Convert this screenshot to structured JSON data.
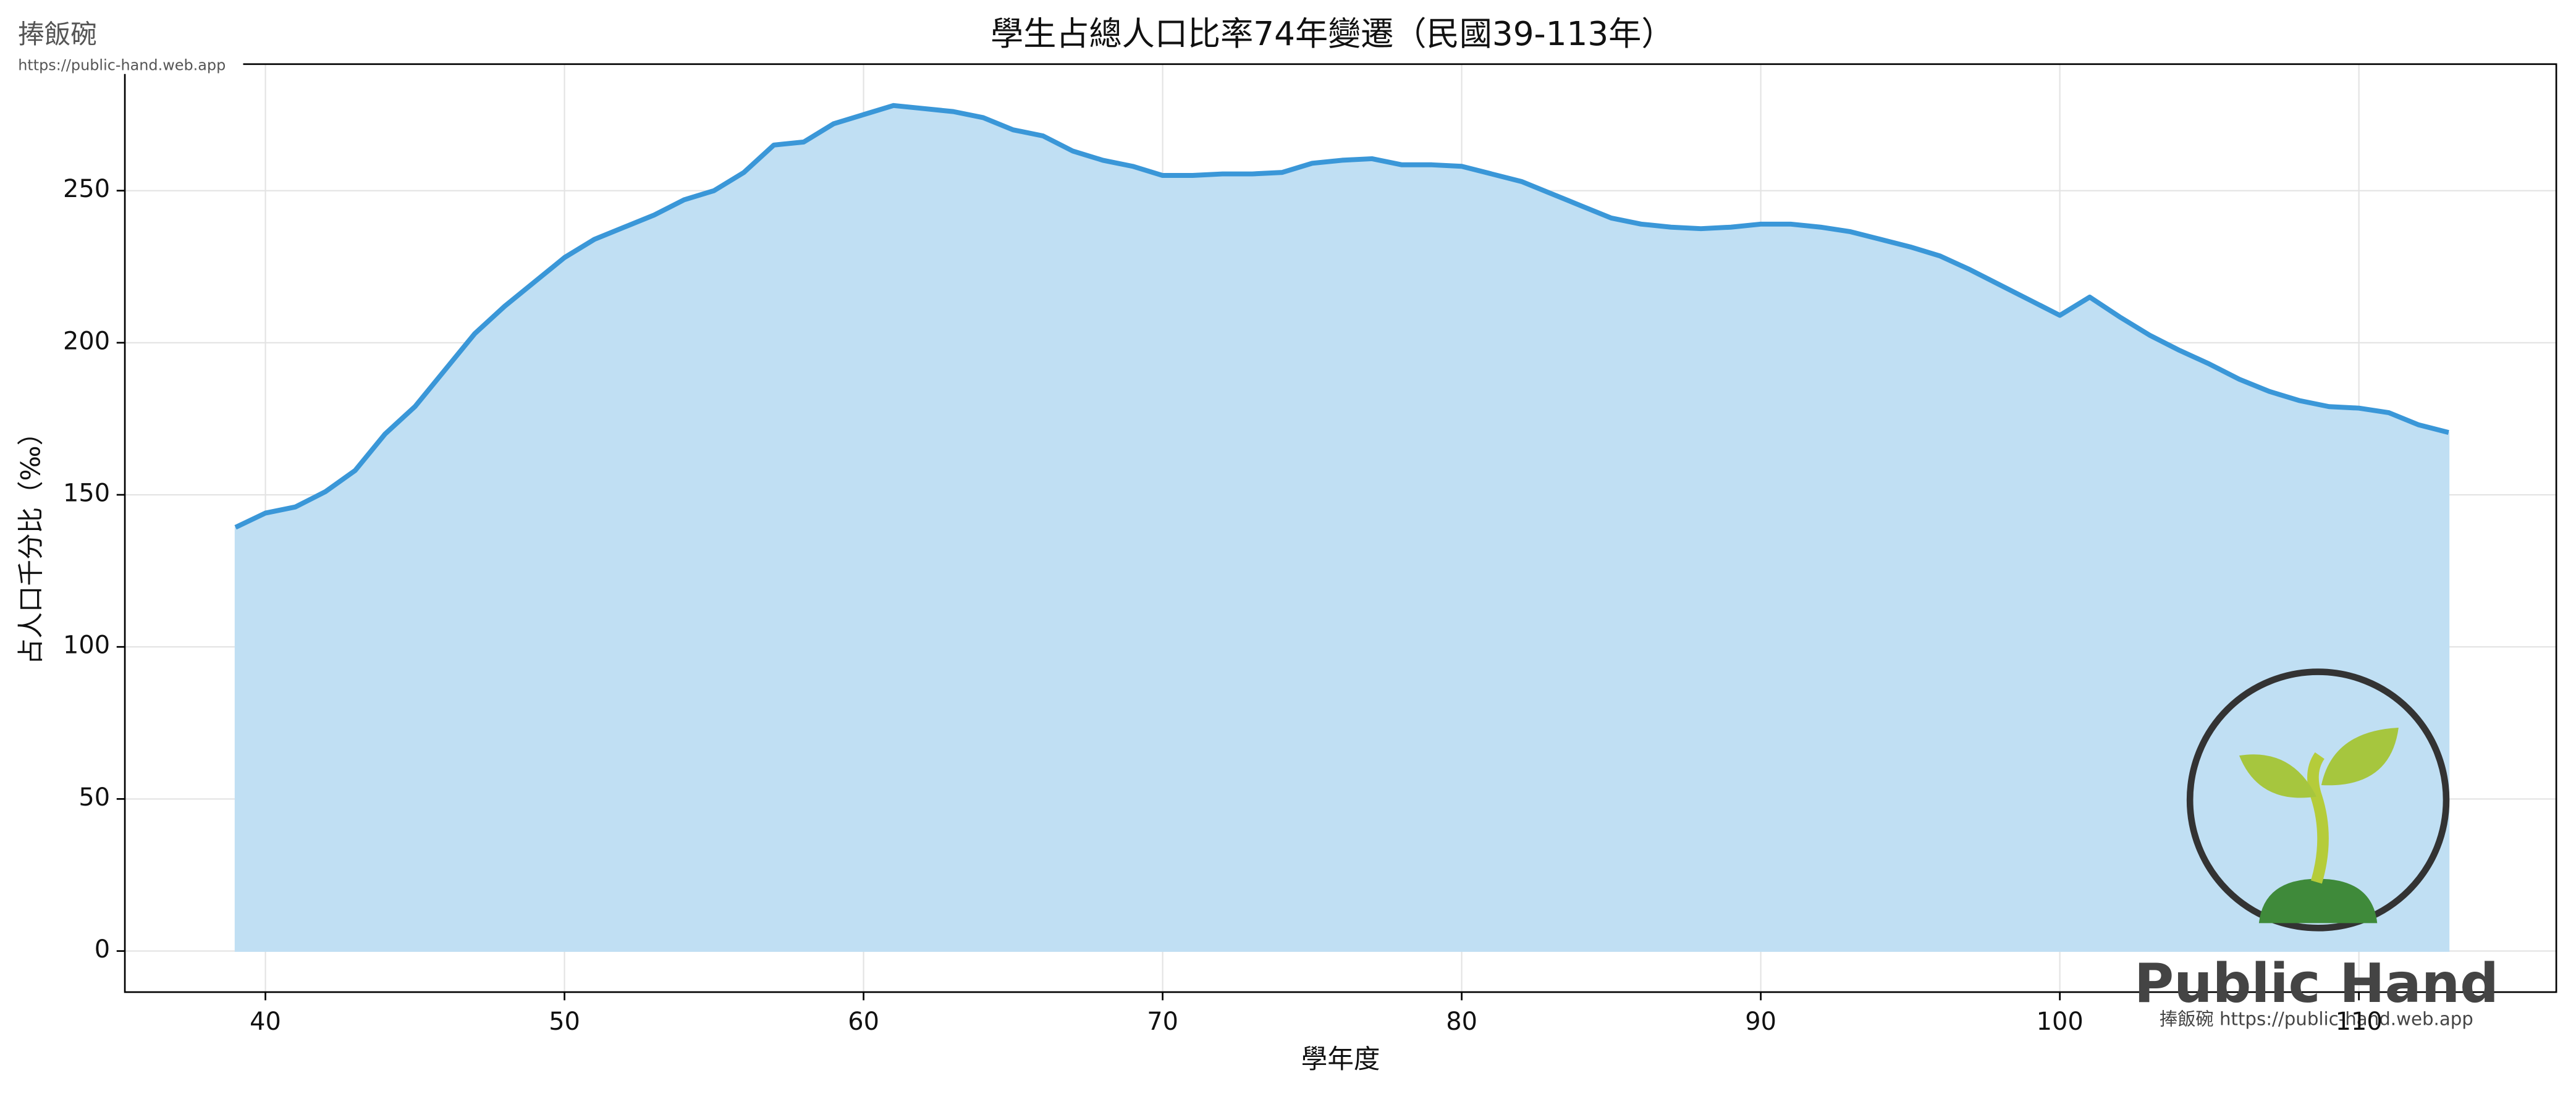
{
  "chart_data": {
    "type": "area",
    "title": "學生占總人口比率74年變遷（民國39-113年）",
    "xlabel": "學年度",
    "ylabel": "占人口千分比（‰）",
    "x": [
      39,
      40,
      41,
      42,
      43,
      44,
      45,
      46,
      47,
      48,
      49,
      50,
      51,
      52,
      53,
      54,
      55,
      56,
      57,
      58,
      59,
      60,
      61,
      62,
      63,
      64,
      65,
      66,
      67,
      68,
      69,
      70,
      71,
      72,
      73,
      74,
      75,
      76,
      77,
      78,
      79,
      80,
      81,
      82,
      83,
      84,
      85,
      86,
      87,
      88,
      89,
      90,
      91,
      92,
      93,
      94,
      95,
      96,
      97,
      98,
      99,
      100,
      101,
      102,
      103,
      104,
      105,
      106,
      107,
      108,
      109,
      110,
      111,
      112,
      113
    ],
    "values": [
      139.3,
      144,
      146,
      151,
      158,
      170,
      179,
      191,
      203,
      212,
      220,
      228,
      234,
      238,
      242,
      247,
      250,
      256,
      265,
      266,
      272,
      275,
      278,
      277,
      276,
      274,
      270,
      268,
      263,
      260,
      258,
      255,
      255,
      255.5,
      255.5,
      256,
      259,
      260,
      260.5,
      258.5,
      258.5,
      258,
      255.5,
      253,
      249,
      245,
      241,
      239,
      238,
      237.5,
      238,
      239,
      239,
      238,
      236.5,
      234,
      231.5,
      228.5,
      224,
      219,
      214,
      209,
      215,
      208.5,
      202.5,
      197.5,
      193,
      188,
      184,
      181,
      179,
      178.5,
      177,
      173,
      170.5
    ],
    "color": "#3a97d8",
    "area_color": "#c0dff3",
    "xlim": [
      35.3,
      116.6
    ],
    "ylim": [
      -13.5,
      291.6
    ],
    "xticks": [
      40,
      50,
      60,
      70,
      80,
      90,
      100,
      110
    ],
    "yticks": [
      0,
      50,
      100,
      150,
      200,
      250
    ],
    "grid": true
  },
  "branding": {
    "name": "捧飯碗",
    "url": "https://public-hand.web.app",
    "logo_text": "Public Hand",
    "logo_caption": "捧飯碗 https://public-hand.web.app"
  }
}
